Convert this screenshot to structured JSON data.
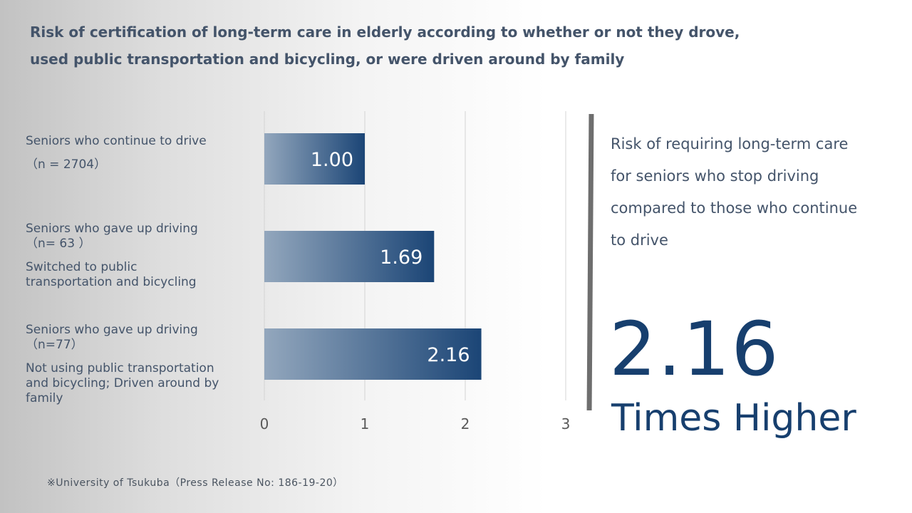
{
  "title": {
    "line1": "Risk of certification of long-term care in elderly according to whether or not they drove,",
    "line2": "used public transportation and bicycling, or were driven around by family"
  },
  "chart_data": {
    "type": "bar",
    "orientation": "horizontal",
    "categories": [
      [
        "Seniors who continue to drive",
        "（n = 2704）"
      ],
      [
        "Seniors who gave up driving",
        "（n= 63 ）",
        "Switched to public",
        "transportation and bicycling"
      ],
      [
        "Seniors who gave up driving",
        "（n=77）",
        "Not using public transportation",
        "and bicycling; Driven around by",
        "family"
      ]
    ],
    "values": [
      1.0,
      1.69,
      2.16
    ],
    "data_labels": [
      "1.00",
      "1.69",
      "2.16"
    ],
    "xlim": [
      0,
      3
    ],
    "x_ticks": [
      "0",
      "1",
      "2",
      "3"
    ],
    "grid": "vertical",
    "legend": "none",
    "bar_gradient": [
      "#93a7bd",
      "#1b4576"
    ]
  },
  "callout": {
    "text_lines": [
      "Risk of requiring long-term care",
      "for seniors who stop driving",
      "compared to those who continue",
      "to drive"
    ],
    "value": "2.16",
    "caption": "Times Higher",
    "accent_color": "#173f6e"
  },
  "source": "※University of Tsukuba（Press Release No: 186-19-20）"
}
